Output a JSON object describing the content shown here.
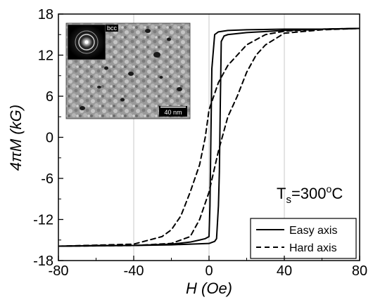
{
  "chart_data": {
    "type": "line",
    "xlabel": "H (Oe)",
    "ylabel": "4πM (kG)",
    "xlim": [
      -80,
      80
    ],
    "ylim": [
      -18,
      18
    ],
    "xticks": [
      -80,
      -40,
      0,
      40,
      80
    ],
    "yticks": [
      -18,
      -12,
      -6,
      0,
      6,
      12,
      18
    ],
    "grid": "vertical",
    "legend_position": "bottom-right",
    "annotation": {
      "main": "T",
      "sub": "s",
      "value": "=300",
      "sup": "o",
      "unit": "C"
    },
    "inset": {
      "diffraction_label": "bcc",
      "scale_bar": "40 nm"
    },
    "series": [
      {
        "name": "Easy axis",
        "style": "solid",
        "color": "#000000",
        "upper_branch": {
          "x": [
            -80,
            -40,
            -20,
            -10,
            -5,
            -2,
            0,
            0.5,
            1,
            1.5,
            3,
            5,
            10,
            20,
            40,
            60,
            80
          ],
          "y": [
            -15.9,
            -15.8,
            -15.6,
            -15.3,
            -15.0,
            -14.8,
            -14.5,
            -10,
            0,
            10,
            15.0,
            15.4,
            15.6,
            15.7,
            15.8,
            15.8,
            15.9
          ]
        },
        "lower_branch": {
          "x": [
            -80,
            -60,
            -40,
            -20,
            0,
            3,
            4,
            5,
            5.5,
            6,
            6.5,
            8,
            10,
            20,
            40,
            60,
            80
          ],
          "y": [
            -15.9,
            -15.8,
            -15.8,
            -15.7,
            -15.5,
            -15.2,
            -14.8,
            -10,
            -5,
            5,
            14.0,
            14.8,
            15.0,
            15.3,
            15.6,
            15.8,
            15.9
          ]
        }
      },
      {
        "name": "Hard axis",
        "style": "dashed",
        "color": "#000000",
        "upper_branch": {
          "x": [
            -80,
            -40,
            -25,
            -20,
            -15,
            -10,
            -5,
            -2,
            0,
            5,
            10,
            20,
            30,
            40,
            60,
            80
          ],
          "y": [
            -15.9,
            -15.6,
            -14.5,
            -13.5,
            -11.5,
            -8,
            -4,
            0,
            4,
            8,
            10.5,
            13.5,
            15.0,
            15.5,
            15.8,
            15.9
          ]
        },
        "lower_branch": {
          "x": [
            -80,
            -40,
            -20,
            -10,
            -5,
            0,
            5,
            10,
            15,
            20,
            25,
            30,
            40,
            60,
            80
          ],
          "y": [
            -15.9,
            -15.8,
            -15.5,
            -14.5,
            -12,
            -8,
            -2,
            3,
            6,
            9.5,
            12,
            13.5,
            15.2,
            15.7,
            15.9
          ]
        }
      }
    ]
  }
}
